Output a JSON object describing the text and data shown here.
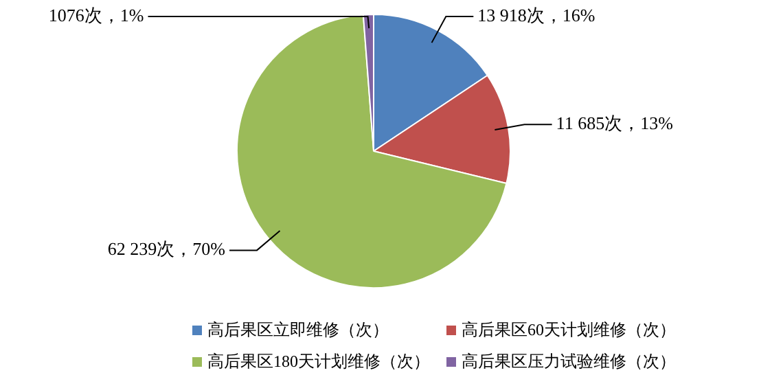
{
  "chart_data": {
    "type": "pie",
    "categories": [
      "高后果区立即维修（次）",
      "高后果区60天计划维修（次）",
      "高后果区180天计划维修（次）",
      "高后果区压力试验维修（次）"
    ],
    "values": [
      13918,
      11685,
      62239,
      1076
    ],
    "value_labels": [
      "13 918次，16%",
      "11 685次，13%",
      "62 239次，70%",
      "1076次，1%"
    ],
    "colors": [
      "#4f81bd",
      "#c0504d",
      "#9bbb59",
      "#8064a2"
    ],
    "legend": "bottom"
  }
}
